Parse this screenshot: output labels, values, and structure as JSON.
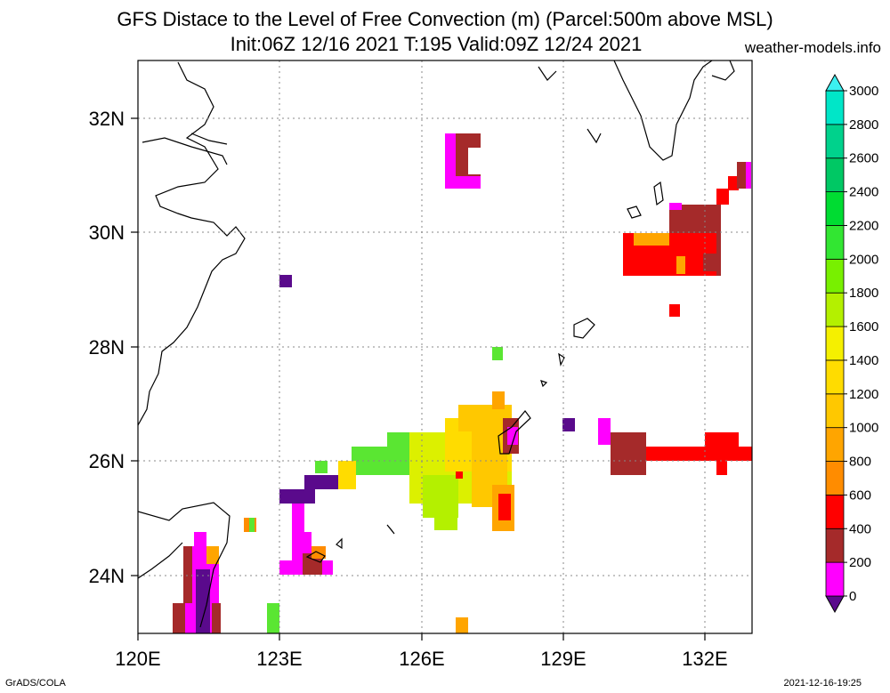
{
  "title_line1": "GFS Distace to the Level of Free Convection (m) (Parcel:500m above MSL)",
  "title_line2": "Init:06Z 12/16 2021 T:195 Valid:09Z 12/24 2021",
  "site": "weather-models.info",
  "footer_left": "GrADS/COLA",
  "footer_right": "2021-12-16-19:25",
  "x_axis_labels": [
    "120E",
    "123E",
    "126E",
    "129E",
    "132E"
  ],
  "y_axis_labels": [
    "32N",
    "30N",
    "28N",
    "26N",
    "24N"
  ],
  "colorbar": {
    "labels": [
      "0",
      "200",
      "400",
      "600",
      "800",
      "1000",
      "1200",
      "1400",
      "1600",
      "1800",
      "2000",
      "2200",
      "2400",
      "2600",
      "2800",
      "3000"
    ],
    "colors": [
      "#5a0a8c",
      "#ff00ff",
      "#a52a2a",
      "#ff0000",
      "#ff8c00",
      "#ffa500",
      "#ffc800",
      "#ffdc00",
      "#f5f000",
      "#b4f000",
      "#78f000",
      "#32e632",
      "#00dc32",
      "#00c864",
      "#00d28c",
      "#00e6c8",
      "#3cf0f0"
    ]
  }
}
